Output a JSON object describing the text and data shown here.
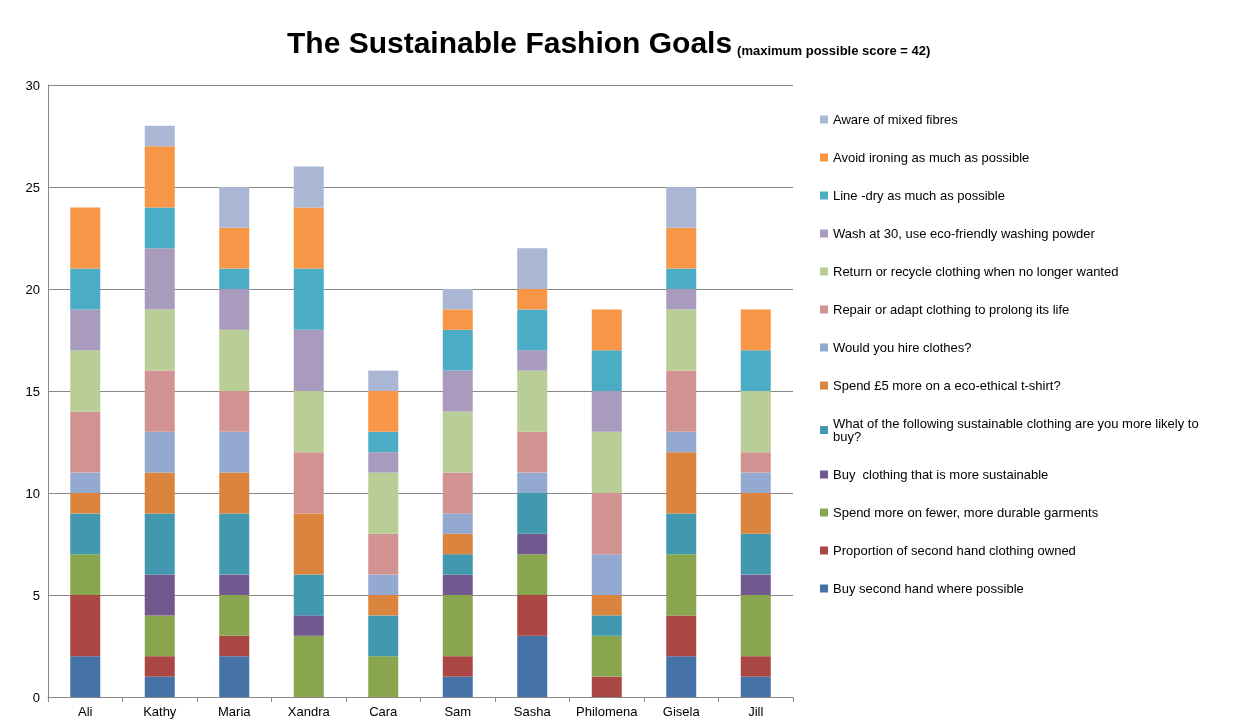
{
  "chart_data": {
    "type": "bar",
    "stacked": true,
    "title": "The Sustainable Fashion Goals",
    "subtitle": "(maximum possible score = 42)",
    "categories": [
      "Ali",
      "Kathy",
      "Maria",
      "Xandra",
      "Cara",
      "Sam",
      "Sasha",
      "Philomena",
      "Gisela",
      "Jill"
    ],
    "series": [
      {
        "name": "Buy second hand where possible",
        "color": "#4572a7",
        "values": [
          2,
          1,
          2,
          0,
          0,
          1,
          3,
          0,
          2,
          1
        ]
      },
      {
        "name": "Proportion of second hand clothing owned",
        "color": "#aa4643",
        "values": [
          3,
          1,
          1,
          0,
          0,
          1,
          2,
          1,
          2,
          1
        ]
      },
      {
        "name": "Spend more on fewer, more durable garments",
        "color": "#89a54e",
        "values": [
          2,
          2,
          2,
          3,
          2,
          3,
          2,
          2,
          3,
          3
        ]
      },
      {
        "name": "Buy  clothing that is more sustainable",
        "color": "#71588f",
        "values": [
          0,
          2,
          1,
          1,
          0,
          1,
          1,
          0,
          0,
          1
        ]
      },
      {
        "name": "What of the following sustainable clothing are you more likely to buy?",
        "color": "#4198af",
        "values": [
          2,
          3,
          3,
          2,
          2,
          1,
          2,
          1,
          2,
          2
        ]
      },
      {
        "name": "Spend £5 more on a eco-ethical t-shirt?",
        "color": "#db843d",
        "values": [
          1,
          2,
          2,
          3,
          1,
          1,
          0,
          1,
          3,
          2
        ]
      },
      {
        "name": "Would you hire clothes?",
        "color": "#93a9cf",
        "values": [
          1,
          2,
          2,
          0,
          1,
          1,
          1,
          2,
          1,
          1
        ]
      },
      {
        "name": "Repair or adapt clothing to prolong its life",
        "color": "#d19392",
        "values": [
          3,
          3,
          2,
          3,
          2,
          2,
          2,
          3,
          3,
          1
        ]
      },
      {
        "name": "Return or recycle clothing when no longer wanted",
        "color": "#b9cd96",
        "values": [
          3,
          3,
          3,
          3,
          3,
          3,
          3,
          3,
          3,
          3
        ]
      },
      {
        "name": "Wash at 30, use eco-friendly washing powder",
        "color": "#a99bbd",
        "values": [
          2,
          3,
          2,
          3,
          1,
          2,
          1,
          2,
          1,
          0
        ]
      },
      {
        "name": "Line -dry as much as possible",
        "color": "#4bacc6",
        "values": [
          2,
          2,
          1,
          3,
          1,
          2,
          2,
          2,
          1,
          2
        ]
      },
      {
        "name": "Avoid ironing as much as possible",
        "color": "#f79646",
        "values": [
          3,
          3,
          2,
          3,
          2,
          1,
          1,
          2,
          2,
          2
        ]
      },
      {
        "name": "Aware of mixed fibres",
        "color": "#a9b7d5",
        "values": [
          0,
          1,
          2,
          2,
          1,
          1,
          2,
          0,
          2,
          0
        ]
      }
    ],
    "ylim": [
      0,
      30
    ],
    "yticks": [
      0,
      5,
      10,
      15,
      20,
      25,
      30
    ],
    "grid": "y",
    "legend": "right"
  }
}
